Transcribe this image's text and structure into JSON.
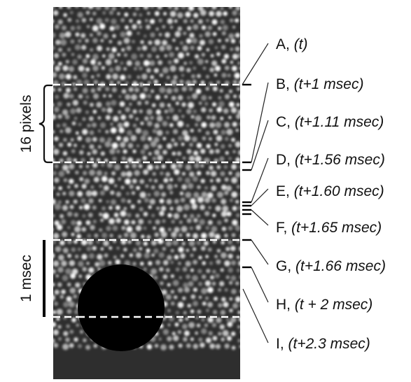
{
  "diagram": {
    "left_annotations": {
      "upper_bracket_label": "16 pixels",
      "scale_bar_label": "1 msec"
    },
    "timing_labels": [
      {
        "letter": "A",
        "time": "(t)"
      },
      {
        "letter": "B",
        "time": "(t+1 msec)"
      },
      {
        "letter": "C",
        "time": "(t+1.11 msec)"
      },
      {
        "letter": "D",
        "time": "(t+1.56 msec)"
      },
      {
        "letter": "E",
        "time": "(t+1.60 msec)"
      },
      {
        "letter": "F",
        "time": "(t+1.65 msec)"
      },
      {
        "letter": "G",
        "time": "(t+1.66 msec)"
      },
      {
        "letter": "H",
        "time": "(t + 2 msec)"
      },
      {
        "letter": "I",
        "time": "(t+2.3 msec)"
      }
    ],
    "colors": {
      "background": "#ffffff",
      "image_background": "#2e2e2e",
      "cone_highlight": "#e8e8e8",
      "dashed_line": "#ffffff",
      "occluder": "#000000",
      "ink": "#111111"
    }
  }
}
